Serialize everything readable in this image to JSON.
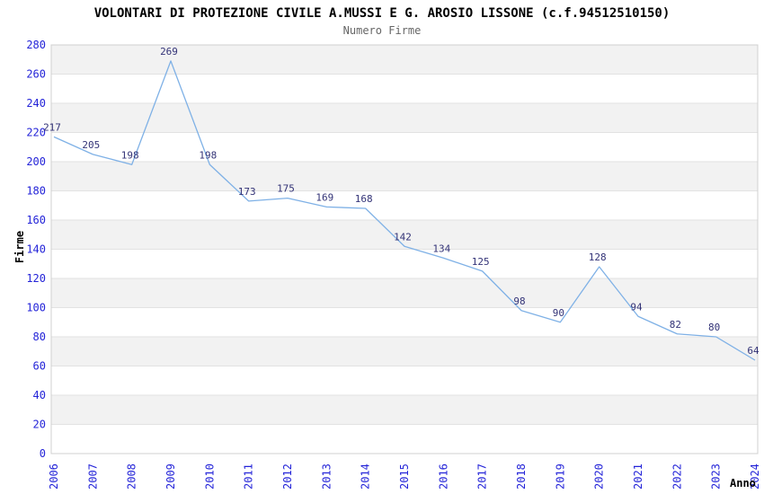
{
  "header": {
    "title": "VOLONTARI DI PROTEZIONE CIVILE A.MUSSI E G. AROSIO LISSONE (c.f.94512510150)",
    "subtitle": "Numero Firme"
  },
  "chart_data": {
    "type": "line",
    "title": "VOLONTARI DI PROTEZIONE CIVILE A.MUSSI E G. AROSIO LISSONE (c.f.94512510150)",
    "subtitle": "Numero Firme",
    "xlabel": "Anno",
    "ylabel": "Firme",
    "x": [
      "2006",
      "2007",
      "2008",
      "2009",
      "2010",
      "2011",
      "2012",
      "2013",
      "2014",
      "2015",
      "2016",
      "2017",
      "2018",
      "2019",
      "2020",
      "2021",
      "2022",
      "2023",
      "2024"
    ],
    "series": [
      {
        "name": "Numero Firme",
        "values": [
          217,
          205,
          198,
          269,
          198,
          173,
          175,
          169,
          168,
          142,
          134,
          125,
          98,
          90,
          128,
          94,
          82,
          80,
          64
        ]
      }
    ],
    "ylim": [
      0,
      280
    ],
    "ytick_step": 20,
    "grid": "horizontal alternating bands",
    "legend": "none",
    "data_labels_visible": true,
    "colors": {
      "line": "#7fb1e6",
      "tick_label": "#2424d8",
      "data_label": "#333377",
      "band": "#f2f2f2",
      "grid_line": "#e2e2e2",
      "plot_border": "#d0d0d0",
      "title": "#000000",
      "subtitle": "#666666",
      "axis_title": "#000000",
      "background": "#ffffff"
    }
  }
}
